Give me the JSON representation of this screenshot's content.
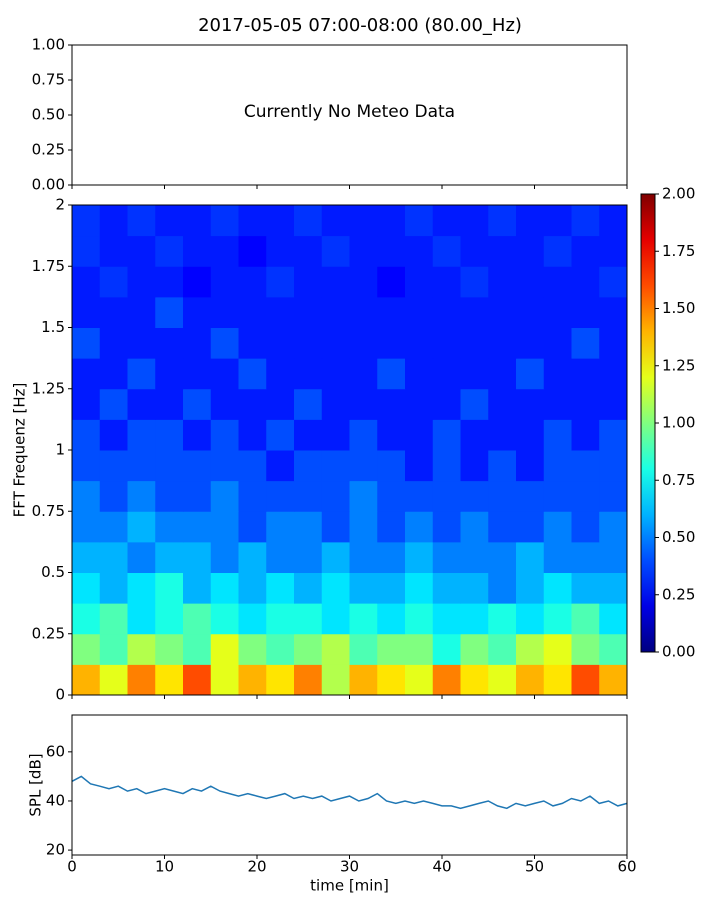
{
  "chart_data": [
    {
      "type": "empty",
      "title": "2017-05-05 07:00-08:00 (80.00_Hz)",
      "annotation": "Currently No Meteo Data",
      "ylim": [
        0,
        1
      ],
      "yticks": [
        {
          "value": 0,
          "label": "0.00"
        },
        {
          "value": 0.25,
          "label": "0.25"
        },
        {
          "value": 0.5,
          "label": "0.50"
        },
        {
          "value": 0.75,
          "label": "0.75"
        },
        {
          "value": 1,
          "label": "1.00"
        }
      ],
      "xlim": [
        0,
        60
      ],
      "xticks": [
        0,
        10,
        20,
        30,
        40,
        50,
        60
      ]
    },
    {
      "type": "heatmap",
      "ylabel": "FFT Frequenz [Hz]",
      "colormap": "jet",
      "xlim": [
        0,
        60
      ],
      "ylim": [
        0,
        2
      ],
      "yticks": [
        0,
        0.25,
        0.5,
        0.75,
        1,
        1.25,
        1.5,
        1.75,
        2
      ],
      "xticks": [
        0,
        10,
        20,
        30,
        40,
        50,
        60
      ],
      "clim": [
        0,
        2
      ],
      "cticks": [
        {
          "value": 0,
          "label": "0.00"
        },
        {
          "value": 0.25,
          "label": "0.25"
        },
        {
          "value": 0.5,
          "label": "0.50"
        },
        {
          "value": 0.75,
          "label": "0.75"
        },
        {
          "value": 1,
          "label": "1.00"
        },
        {
          "value": 1.25,
          "label": "1.25"
        },
        {
          "value": 1.5,
          "label": "1.50"
        },
        {
          "value": 1.75,
          "label": "1.75"
        },
        {
          "value": 2,
          "label": "2.00"
        }
      ],
      "z": [
        [
          1.4,
          1.2,
          1.5,
          1.3,
          1.6,
          1.2,
          1.4,
          1.3,
          1.5,
          1.1,
          1.4,
          1.3,
          1.2,
          1.5,
          1.3,
          1.2,
          1.4,
          1.3,
          1.6,
          1.4
        ],
        [
          1.0,
          0.9,
          1.1,
          1.0,
          0.9,
          1.2,
          1.0,
          0.9,
          1.0,
          1.1,
          0.9,
          1.0,
          1.0,
          0.8,
          1.0,
          0.9,
          1.1,
          1.2,
          1.0,
          0.9
        ],
        [
          0.8,
          0.9,
          0.7,
          0.8,
          0.9,
          0.8,
          0.7,
          0.8,
          0.8,
          0.7,
          0.8,
          0.7,
          0.8,
          0.7,
          0.7,
          0.8,
          0.7,
          0.8,
          0.9,
          0.7
        ],
        [
          0.7,
          0.6,
          0.7,
          0.8,
          0.6,
          0.7,
          0.6,
          0.7,
          0.6,
          0.7,
          0.6,
          0.6,
          0.7,
          0.6,
          0.6,
          0.5,
          0.6,
          0.7,
          0.6,
          0.6
        ],
        [
          0.6,
          0.6,
          0.5,
          0.6,
          0.6,
          0.5,
          0.6,
          0.5,
          0.5,
          0.6,
          0.5,
          0.5,
          0.6,
          0.5,
          0.5,
          0.5,
          0.6,
          0.5,
          0.5,
          0.5
        ],
        [
          0.5,
          0.5,
          0.6,
          0.5,
          0.5,
          0.5,
          0.4,
          0.5,
          0.5,
          0.4,
          0.5,
          0.4,
          0.5,
          0.4,
          0.5,
          0.4,
          0.4,
          0.5,
          0.4,
          0.5
        ],
        [
          0.5,
          0.4,
          0.5,
          0.4,
          0.4,
          0.5,
          0.4,
          0.4,
          0.4,
          0.4,
          0.5,
          0.4,
          0.4,
          0.4,
          0.4,
          0.4,
          0.4,
          0.4,
          0.4,
          0.4
        ],
        [
          0.4,
          0.4,
          0.4,
          0.4,
          0.4,
          0.4,
          0.4,
          0.3,
          0.4,
          0.4,
          0.4,
          0.4,
          0.3,
          0.4,
          0.3,
          0.4,
          0.3,
          0.4,
          0.4,
          0.4
        ],
        [
          0.4,
          0.3,
          0.4,
          0.4,
          0.3,
          0.4,
          0.3,
          0.4,
          0.3,
          0.3,
          0.4,
          0.3,
          0.3,
          0.4,
          0.3,
          0.3,
          0.3,
          0.4,
          0.3,
          0.4
        ],
        [
          0.3,
          0.4,
          0.3,
          0.3,
          0.4,
          0.3,
          0.3,
          0.3,
          0.4,
          0.3,
          0.3,
          0.3,
          0.3,
          0.3,
          0.4,
          0.3,
          0.3,
          0.3,
          0.3,
          0.3
        ],
        [
          0.3,
          0.3,
          0.4,
          0.3,
          0.3,
          0.3,
          0.4,
          0.3,
          0.3,
          0.3,
          0.3,
          0.4,
          0.3,
          0.3,
          0.3,
          0.3,
          0.4,
          0.3,
          0.3,
          0.3
        ],
        [
          0.4,
          0.3,
          0.3,
          0.3,
          0.3,
          0.4,
          0.3,
          0.3,
          0.3,
          0.3,
          0.3,
          0.3,
          0.3,
          0.3,
          0.3,
          0.3,
          0.3,
          0.3,
          0.4,
          0.3
        ],
        [
          0.3,
          0.3,
          0.3,
          0.4,
          0.3,
          0.3,
          0.3,
          0.3,
          0.3,
          0.3,
          0.3,
          0.3,
          0.3,
          0.3,
          0.3,
          0.3,
          0.3,
          0.3,
          0.3,
          0.3
        ],
        [
          0.3,
          0.35,
          0.3,
          0.3,
          0.25,
          0.3,
          0.3,
          0.35,
          0.3,
          0.3,
          0.3,
          0.25,
          0.3,
          0.3,
          0.35,
          0.3,
          0.3,
          0.3,
          0.3,
          0.35
        ],
        [
          0.35,
          0.3,
          0.3,
          0.35,
          0.3,
          0.3,
          0.25,
          0.3,
          0.3,
          0.35,
          0.3,
          0.3,
          0.3,
          0.35,
          0.3,
          0.3,
          0.3,
          0.35,
          0.3,
          0.3
        ],
        [
          0.35,
          0.3,
          0.35,
          0.3,
          0.3,
          0.35,
          0.3,
          0.3,
          0.35,
          0.3,
          0.3,
          0.3,
          0.35,
          0.3,
          0.3,
          0.35,
          0.3,
          0.3,
          0.35,
          0.3
        ]
      ]
    },
    {
      "type": "line",
      "xlabel": "time [min]",
      "ylabel": "SPL [dB]",
      "xlim": [
        0,
        60
      ],
      "xticks": [
        0,
        10,
        20,
        30,
        40,
        50,
        60
      ],
      "ylim": [
        18,
        75
      ],
      "yticks": [
        20,
        40,
        60
      ],
      "color": "#1f77b4",
      "x": [
        0,
        1,
        2,
        3,
        4,
        5,
        6,
        7,
        8,
        9,
        10,
        11,
        12,
        13,
        14,
        15,
        16,
        17,
        18,
        19,
        20,
        21,
        22,
        23,
        24,
        25,
        26,
        27,
        28,
        29,
        30,
        31,
        32,
        33,
        34,
        35,
        36,
        37,
        38,
        39,
        40,
        41,
        42,
        43,
        44,
        45,
        46,
        47,
        48,
        49,
        50,
        51,
        52,
        53,
        54,
        55,
        56,
        57,
        58,
        59,
        60
      ],
      "values": [
        48,
        50,
        47,
        46,
        45,
        46,
        44,
        45,
        43,
        44,
        45,
        44,
        43,
        45,
        44,
        46,
        44,
        43,
        42,
        43,
        42,
        41,
        42,
        43,
        41,
        42,
        41,
        42,
        40,
        41,
        42,
        40,
        41,
        43,
        40,
        39,
        40,
        39,
        40,
        39,
        38,
        38,
        37,
        38,
        39,
        40,
        38,
        37,
        39,
        38,
        39,
        40,
        38,
        39,
        41,
        40,
        42,
        39,
        40,
        38,
        39
      ]
    }
  ]
}
